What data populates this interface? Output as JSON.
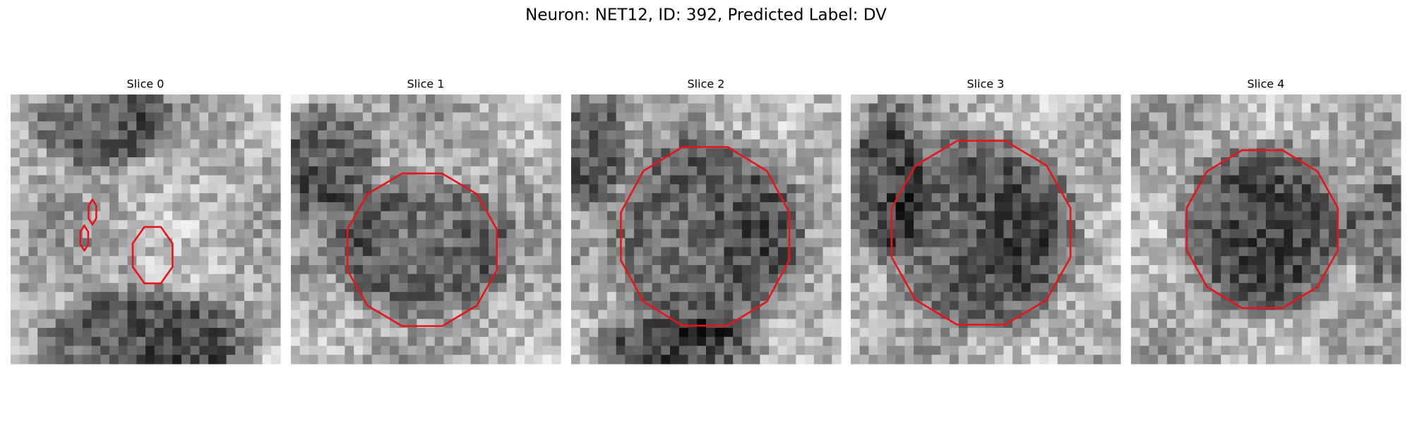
{
  "title": "Neuron: NET12, ID: 392, Predicted Label: DV",
  "panels": [
    {
      "title": "Slice 0"
    },
    {
      "title": "Slice 1"
    },
    {
      "title": "Slice 2"
    },
    {
      "title": "Slice 3"
    },
    {
      "title": "Slice 4"
    }
  ]
}
